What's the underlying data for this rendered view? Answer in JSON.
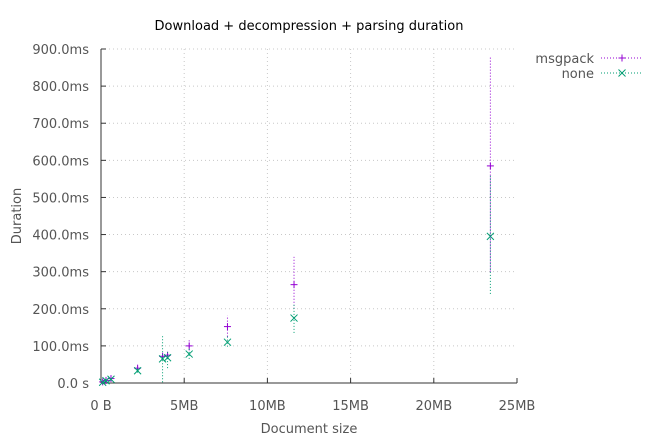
{
  "chart_data": {
    "type": "scatter",
    "title": "Download + decompression + parsing duration",
    "xlabel": "Document size",
    "ylabel": "Duration",
    "xlim": [
      0,
      25
    ],
    "ylim": [
      0,
      900
    ],
    "x_unit": "MB",
    "y_unit": "ms",
    "x_ticks": [
      {
        "value": 0,
        "label": "0 B"
      },
      {
        "value": 5,
        "label": "5MB"
      },
      {
        "value": 10,
        "label": "10MB"
      },
      {
        "value": 15,
        "label": "15MB"
      },
      {
        "value": 20,
        "label": "20MB"
      },
      {
        "value": 25,
        "label": "25MB"
      }
    ],
    "y_ticks": [
      {
        "value": 0,
        "label": "0.0 s"
      },
      {
        "value": 100,
        "label": "100.0ms"
      },
      {
        "value": 200,
        "label": "200.0ms"
      },
      {
        "value": 300,
        "label": "300.0ms"
      },
      {
        "value": 400,
        "label": "400.0ms"
      },
      {
        "value": 500,
        "label": "500.0ms"
      },
      {
        "value": 600,
        "label": "600.0ms"
      },
      {
        "value": 700,
        "label": "700.0ms"
      },
      {
        "value": 800,
        "label": "800.0ms"
      },
      {
        "value": 900,
        "label": "900.0ms"
      }
    ],
    "grid": true,
    "legend_position": "top-right",
    "series": [
      {
        "name": "msgpack",
        "color": "#9400d3",
        "marker": "plus",
        "points": [
          {
            "x": 0.1,
            "y": 3,
            "lo": 2,
            "hi": 5
          },
          {
            "x": 0.3,
            "y": 7,
            "lo": 5,
            "hi": 9
          },
          {
            "x": 0.6,
            "y": 12,
            "lo": 9,
            "hi": 15
          },
          {
            "x": 2.2,
            "y": 40,
            "lo": 36,
            "hi": 46
          },
          {
            "x": 3.7,
            "y": 72,
            "lo": 65,
            "hi": 80
          },
          {
            "x": 4.0,
            "y": 75,
            "lo": 68,
            "hi": 82
          },
          {
            "x": 5.3,
            "y": 100,
            "lo": 88,
            "hi": 120
          },
          {
            "x": 7.6,
            "y": 152,
            "lo": 125,
            "hi": 182
          },
          {
            "x": 11.6,
            "y": 265,
            "lo": 200,
            "hi": 340
          },
          {
            "x": 23.4,
            "y": 585,
            "lo": 300,
            "hi": 880
          }
        ]
      },
      {
        "name": "none",
        "color": "#009e73",
        "marker": "cross",
        "points": [
          {
            "x": 0.1,
            "y": 2,
            "lo": 1,
            "hi": 4
          },
          {
            "x": 0.3,
            "y": 6,
            "lo": 4,
            "hi": 8
          },
          {
            "x": 0.6,
            "y": 10,
            "lo": 7,
            "hi": 13
          },
          {
            "x": 2.2,
            "y": 33,
            "lo": 28,
            "hi": 40
          },
          {
            "x": 3.7,
            "y": 65,
            "lo": 2,
            "hi": 130
          },
          {
            "x": 4.0,
            "y": 68,
            "lo": 40,
            "hi": 88
          },
          {
            "x": 5.3,
            "y": 78,
            "lo": 65,
            "hi": 95
          },
          {
            "x": 7.6,
            "y": 110,
            "lo": 98,
            "hi": 125
          },
          {
            "x": 11.6,
            "y": 175,
            "lo": 135,
            "hi": 215
          },
          {
            "x": 23.4,
            "y": 395,
            "lo": 240,
            "hi": 560
          }
        ]
      }
    ]
  }
}
